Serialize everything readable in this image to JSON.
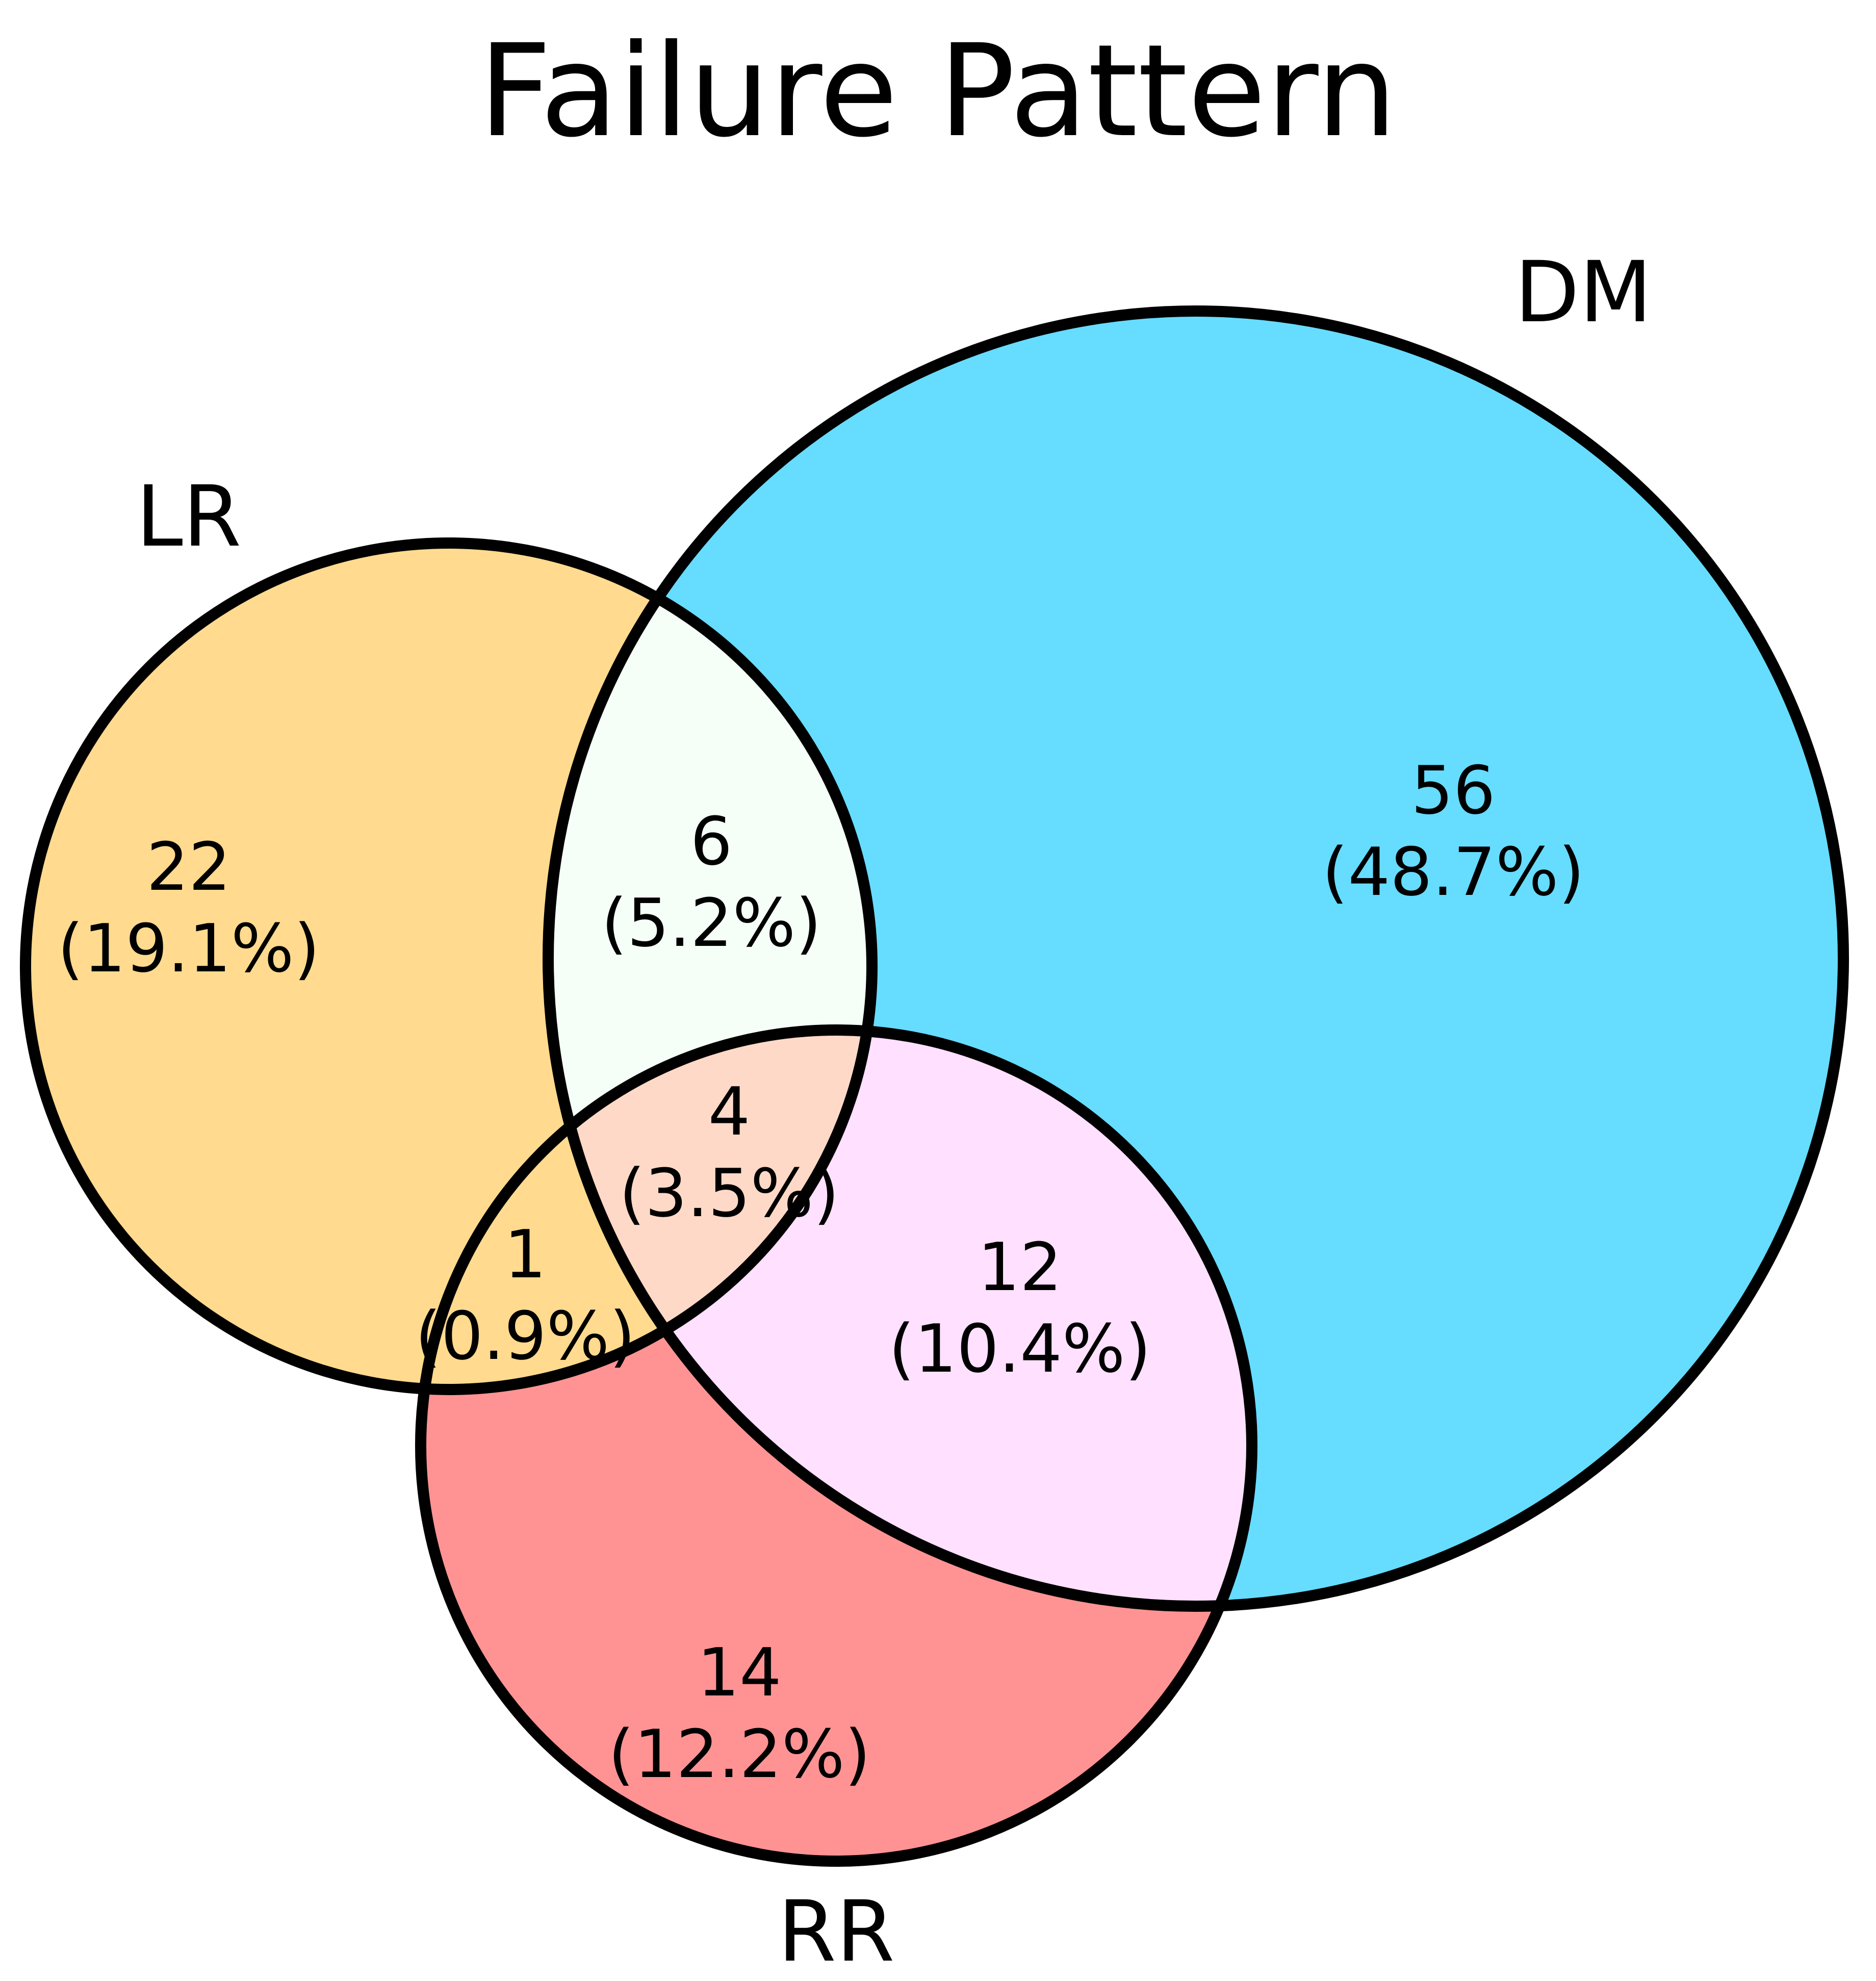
{
  "title": "Failure Pattern",
  "sets": [
    {
      "id": "LR",
      "label": "LR",
      "color": "#FFDA8F"
    },
    {
      "id": "DM",
      "label": "DM",
      "color": "#66DCFF"
    },
    {
      "id": "RR",
      "label": "RR",
      "color": "#FF9393"
    }
  ],
  "regions": {
    "lr_only": {
      "count": "22",
      "percent": "(19.1%)"
    },
    "dm_only": {
      "count": "56",
      "percent": "(48.7%)"
    },
    "rr_only": {
      "count": "14",
      "percent": "(12.2%)"
    },
    "lr_dm": {
      "count": "6",
      "percent": "(5.2%)"
    },
    "lr_rr": {
      "count": "1",
      "percent": "(0.9%)"
    },
    "dm_rr": {
      "count": "12",
      "percent": "(10.4%)"
    },
    "lr_dm_rr": {
      "count": "4",
      "percent": "(3.5%)"
    }
  },
  "region_colors": {
    "lr_dm": "#F5FFF7",
    "dm_rr": "#FFE0FF",
    "lr_dm_rr": "#FFD9C7"
  }
}
